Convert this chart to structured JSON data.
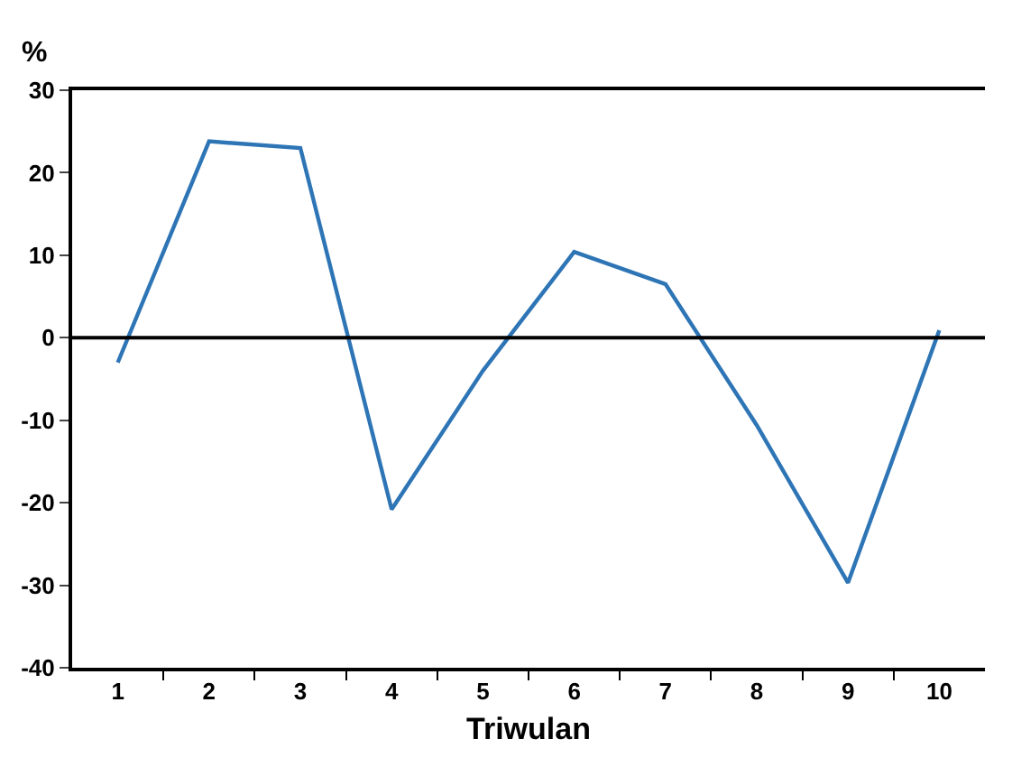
{
  "chart_data": {
    "type": "line",
    "xlabel": "Triwulan",
    "ylabel": "%",
    "categories": [
      "1",
      "2",
      "3",
      "4",
      "5",
      "6",
      "7",
      "8",
      "9",
      "10"
    ],
    "series": [
      {
        "color": "#2e75b6",
        "values": [
          -3,
          23.8,
          23,
          -20.8,
          -4,
          10.4,
          6.5,
          -10.6,
          -29.7,
          0.9
        ]
      }
    ],
    "ylim": [
      -40,
      30
    ],
    "yticks": [
      -40,
      -30,
      -20,
      -10,
      0,
      10,
      20,
      30
    ],
    "ref_lines": [
      {
        "axis": "y",
        "value": 0,
        "label": null,
        "color": "#000000"
      }
    ],
    "marker": "none",
    "line_style": "solid"
  }
}
